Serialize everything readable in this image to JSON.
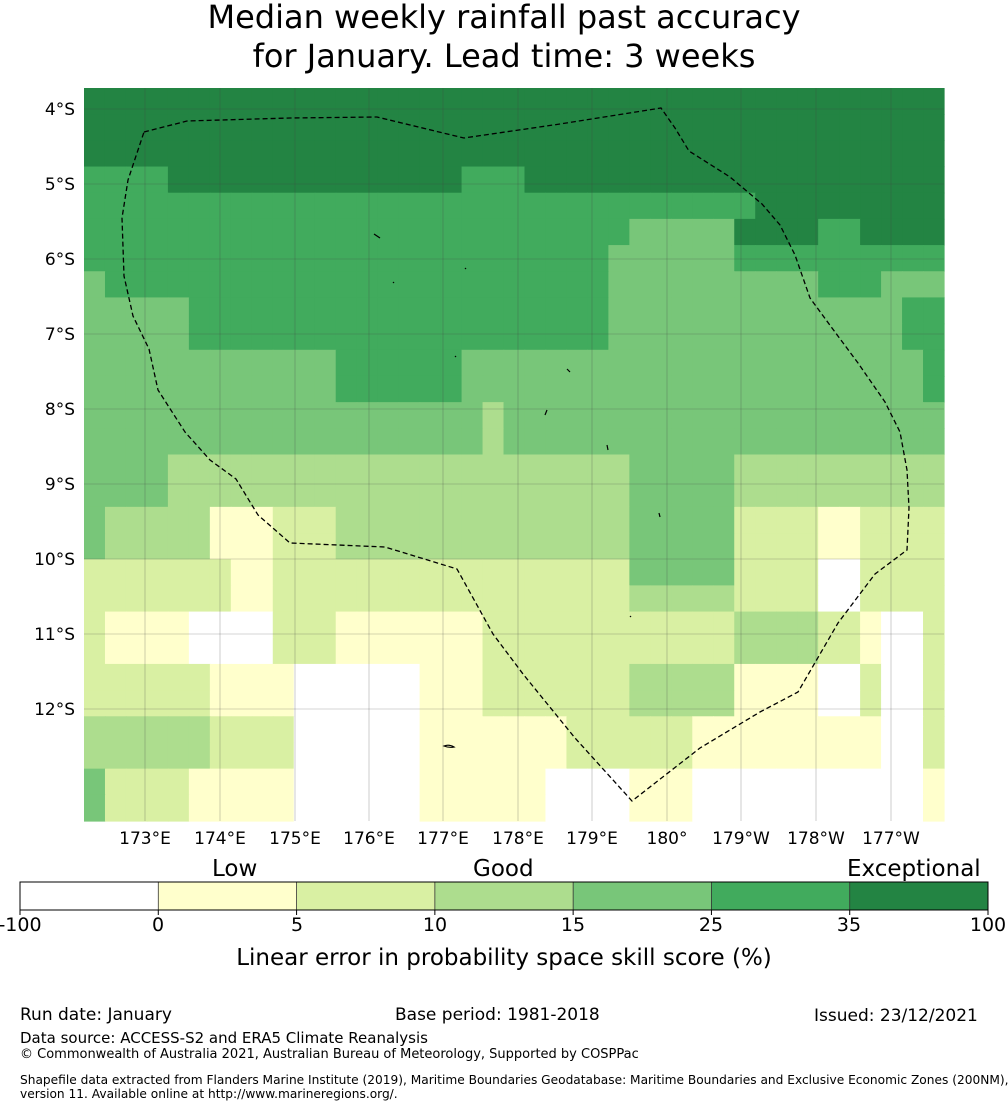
{
  "title": {
    "line1": "Median weekly rainfall past accuracy",
    "line2": "for January. Lead time: 3 weeks"
  },
  "map": {
    "lat_labels": [
      "4°S",
      "5°S",
      "6°S",
      "7°S",
      "8°S",
      "9°S",
      "10°S",
      "11°S",
      "12°S"
    ],
    "lon_labels": [
      "173°E",
      "174°E",
      "175°E",
      "176°E",
      "177°E",
      "178°E",
      "179°E",
      "180°",
      "179°W",
      "178°W",
      "177°W"
    ],
    "grid_legend": {
      "0": "#ffffff",
      "1": "#ffffcc",
      "2": "#d9f0a3",
      "3": "#addd8e",
      "4": "#78c679",
      "5": "#41ab5d",
      "6": "#238443"
    },
    "grid_rows": [
      "66666666666666666666666666666666666666666",
      "66666666666666666666666666666666666666666",
      "66666666666666666666666666666666666666666",
      "55556666666666666655566666666666666666666",
      "55555555555555555555555555555555666666666",
      "55555555555555555555555555444446666556666",
      "55555555555555555555555554444445555555555",
      "45555555555555555555555554444444444555444",
      "44444555555555555555555554444444444444455",
      "44444555555555555555555554444444444444455",
      "44444444444455555544444444444444444444445",
      "44444444444455555544444444444444444444445",
      "44444444444444444443444444444444444444444",
      "44444444444444444443444444444444444444444",
      "44443333333333333333333333444443333333333",
      "44443333333333333333333333444443333333333",
      "43333311122233333333333333444442222112222",
      "43333311122233333333333333444442222112222",
      "22222221122222222222222222444442222002222",
      "22222221122222222222222222333332222002222",
      "21111000022211111112222222222223333221002",
      "21111000022211111112222222222223333221002",
      "22222211110000001112222222333331111002002",
      "22222211110000001112222222333331111002002",
      "33333322220000001111111222222111111111002",
      "33333322220000001111111222222111111111002",
      "42222111110000001111110000111000000000001",
      "42222111110000001111110000111000000000001"
    ],
    "mask_rows": [
      "..........................................",
      "..........................................",
      "..........................................",
      "..........................................",
      "..........................................",
      "..........................................",
      "..........................................",
      "..........................................",
      "..........................................",
      "..........................................",
      "..........................................",
      "..........................................",
      "..........................................",
      "..........................................",
      "..........................................",
      "..........................................",
      "..........................................",
      "..........................................",
      "..........................................",
      "..........................................",
      "..........................................",
      "..........................................",
      "..........................................",
      "..........................................",
      "..........................................",
      "..........................................",
      "..........................................",
      ".........................................."
    ]
  },
  "colorbar": {
    "words": {
      "low": "Low",
      "good": "Good",
      "exceptional": "Exceptional"
    },
    "ticks": [
      "-100",
      "0",
      "5",
      "10",
      "15",
      "25",
      "35",
      "100"
    ],
    "colors": [
      "#ffffff",
      "#ffffcc",
      "#d9f0a3",
      "#addd8e",
      "#78c679",
      "#41ab5d",
      "#238443"
    ],
    "label": "Linear error in probability space skill score (%)"
  },
  "footer": {
    "run_date": "Run date: January",
    "base_period": "Base period: 1981-2018",
    "issued": "Issued: 23/12/2021",
    "data_source": "Data source: ACCESS-S2 and ERA5 Climate Reanalysis",
    "copyright": "© Commonwealth of Australia 2021, Australian Bureau of Meteorology, Supported by COSPPac",
    "shapefile_line1": "Shapefile data extracted from Flanders Marine Institute (2019), Maritime Boundaries Geodatabase: Maritime Boundaries and Exclusive Economic Zones (200NM),",
    "shapefile_line2": "version 11. Available online at http://www.marineregions.org/."
  }
}
